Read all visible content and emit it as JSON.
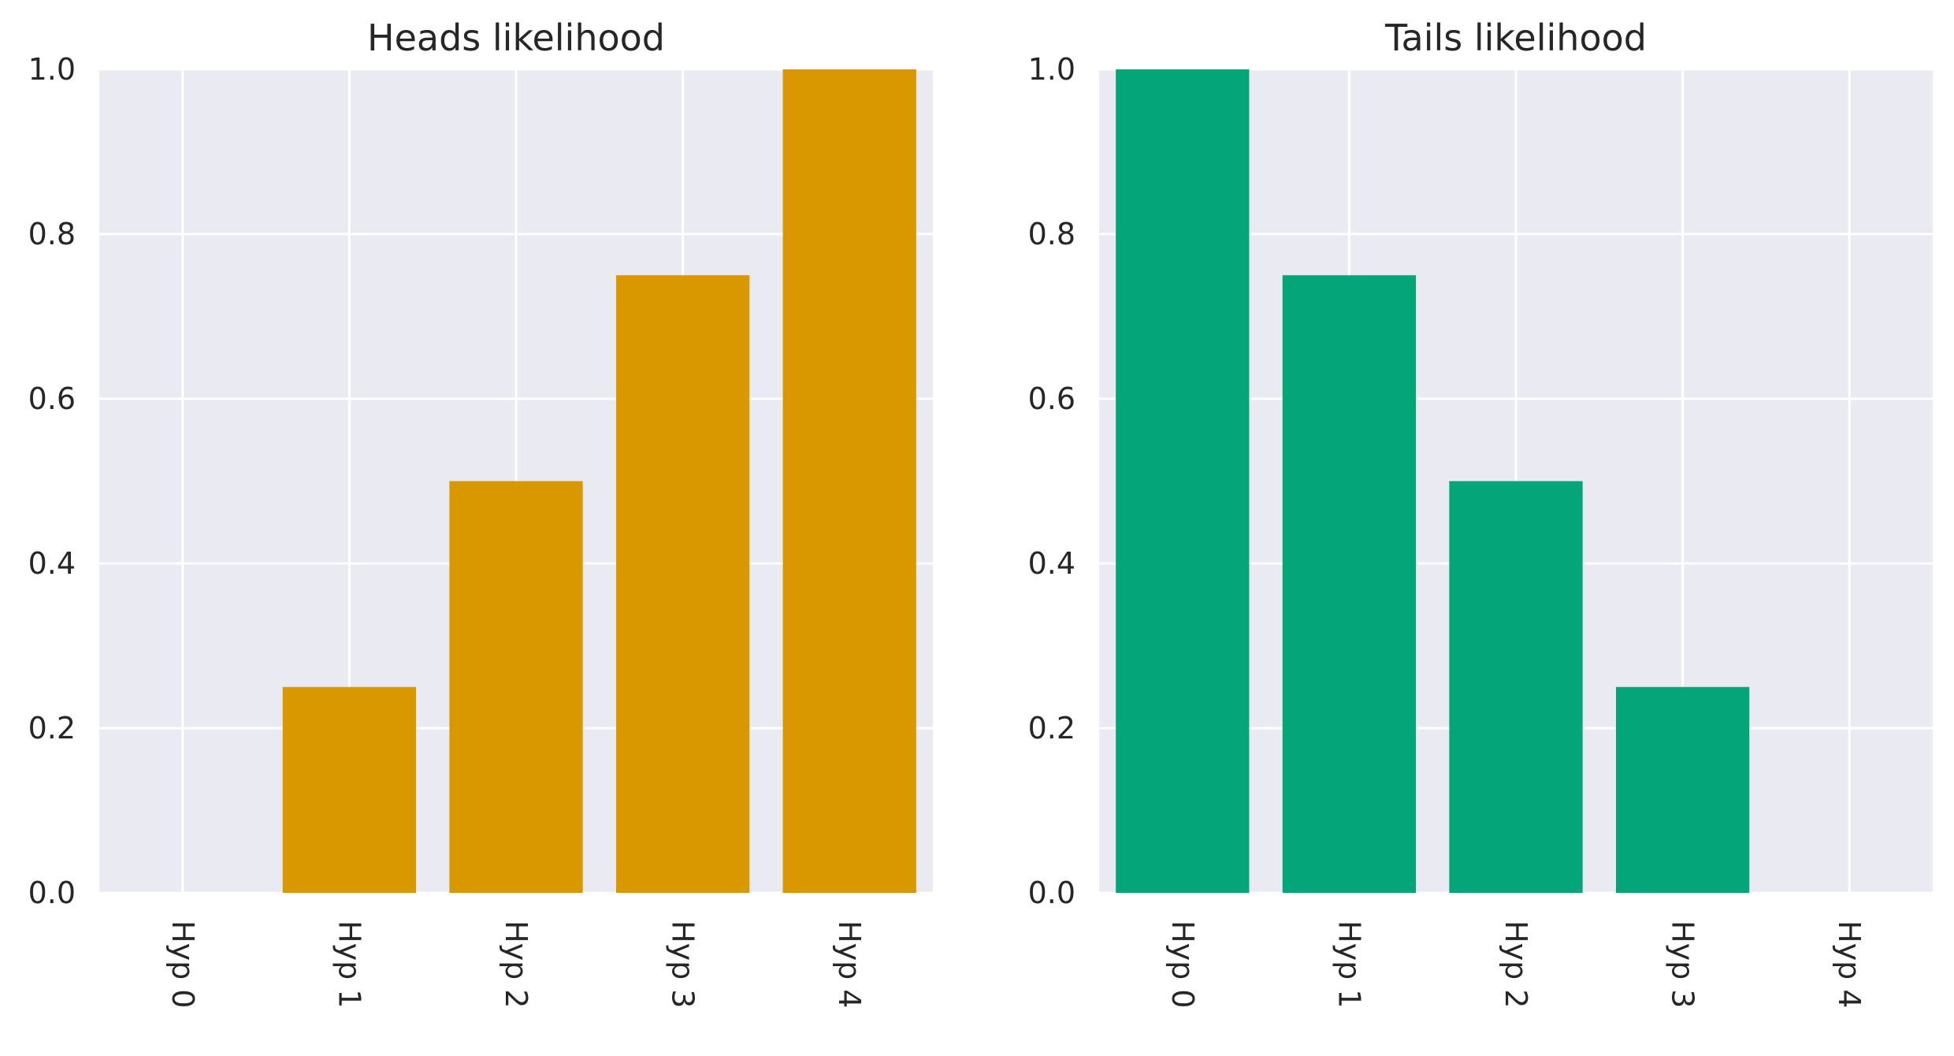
{
  "chart_data": [
    {
      "type": "bar",
      "title": "Heads likelihood",
      "xlabel": "",
      "ylabel": "",
      "categories": [
        "Hyp 0",
        "Hyp 1",
        "Hyp 2",
        "Hyp 3",
        "Hyp 4"
      ],
      "values": [
        0.0,
        0.25,
        0.5,
        0.75,
        1.0
      ],
      "color": "#d99800",
      "ylim": [
        0,
        1.0
      ],
      "yticks": [
        "0.0",
        "0.2",
        "0.4",
        "0.6",
        "0.8",
        "1.0"
      ],
      "grid": true,
      "background": "#eaeaf2"
    },
    {
      "type": "bar",
      "title": "Tails likelihood",
      "xlabel": "",
      "ylabel": "",
      "categories": [
        "Hyp 0",
        "Hyp 1",
        "Hyp 2",
        "Hyp 3",
        "Hyp 4"
      ],
      "values": [
        1.0,
        0.75,
        0.5,
        0.25,
        0.0
      ],
      "color": "#05a57a",
      "ylim": [
        0,
        1.0
      ],
      "yticks": [
        "0.0",
        "0.2",
        "0.4",
        "0.6",
        "0.8",
        "1.0"
      ],
      "grid": true,
      "background": "#eaeaf2"
    }
  ]
}
